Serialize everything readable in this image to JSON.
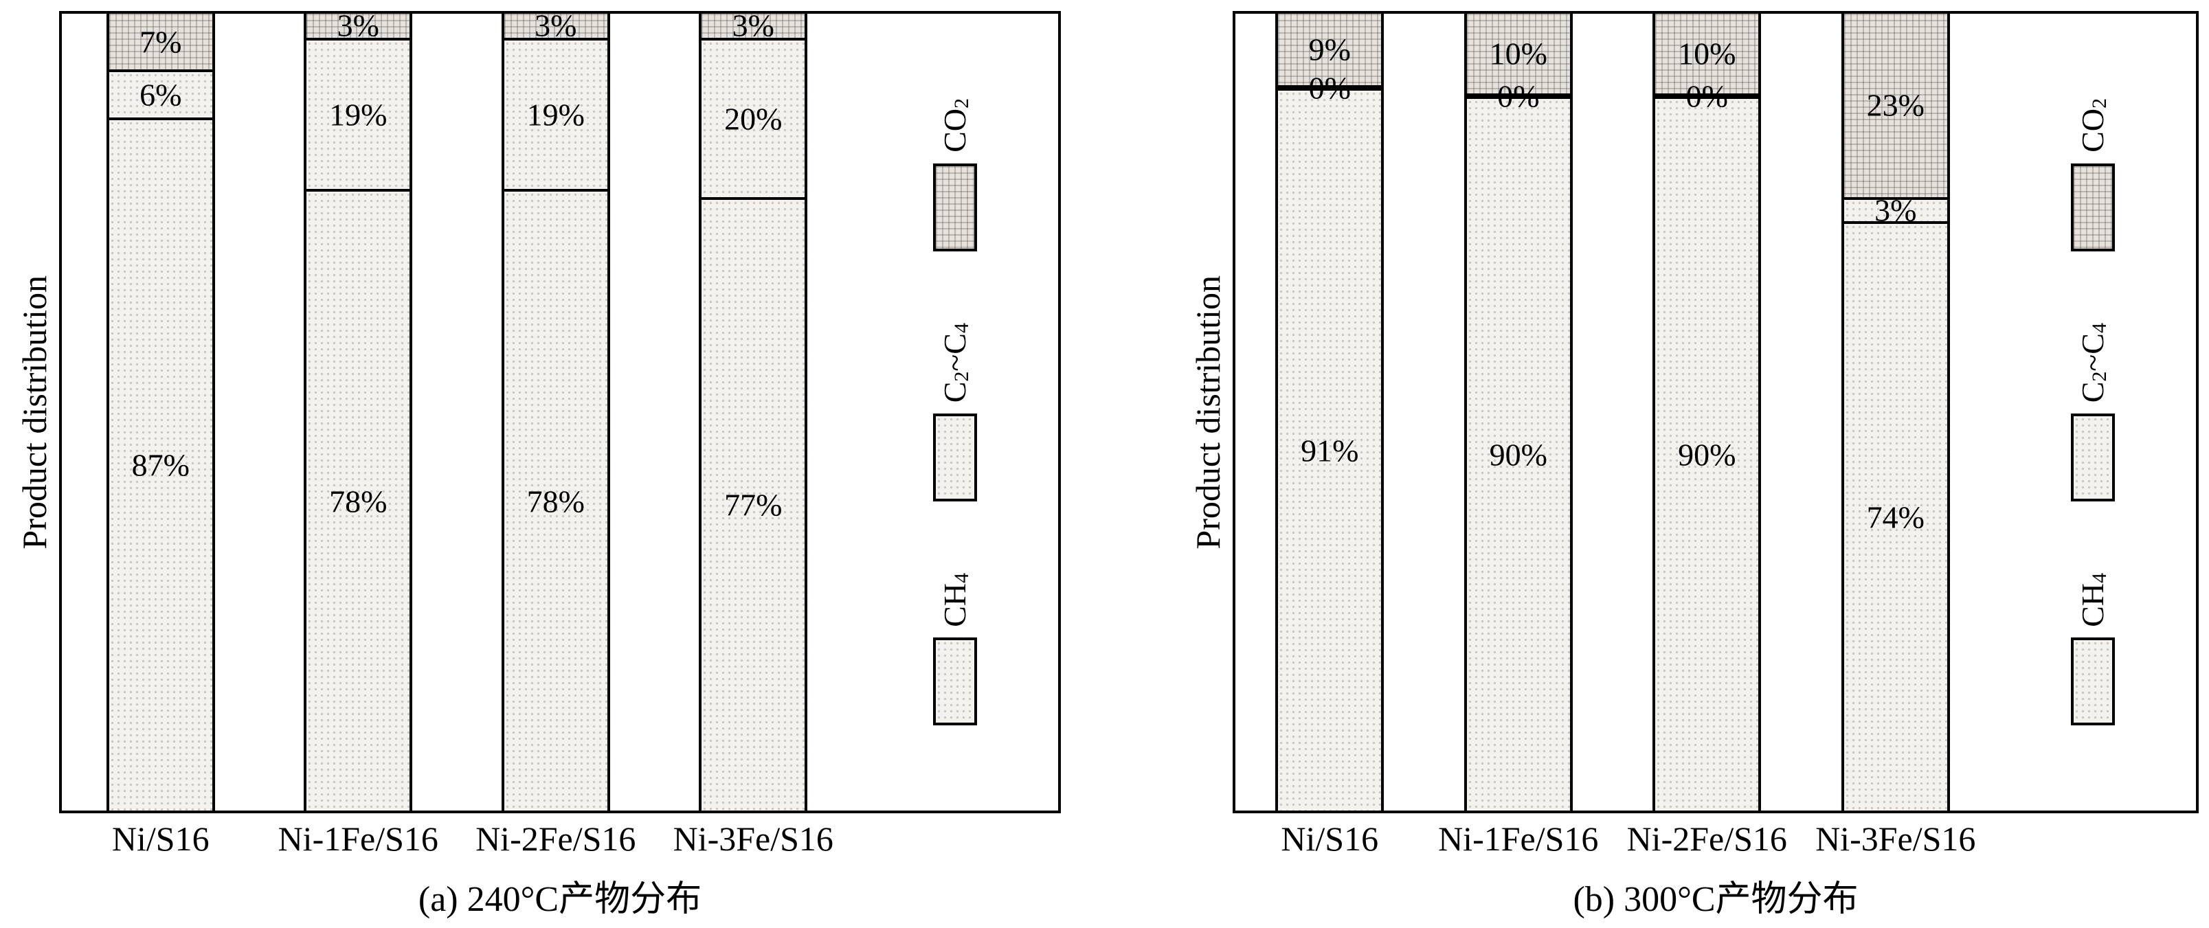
{
  "chart_data": [
    {
      "type": "bar",
      "stacked": true,
      "title": "(a) 240°C产物分布",
      "ylabel": "Product distribution",
      "xlabel": "",
      "ylim": [
        0,
        100
      ],
      "grid": false,
      "legend_position": "right-inside",
      "categories": [
        "Ni/S16",
        "Ni-1Fe/S16",
        "Ni-2Fe/S16",
        "Ni-3Fe/S16"
      ],
      "series": [
        {
          "name": "CH_4",
          "pattern": "dots",
          "values": [
            87,
            78,
            78,
            77
          ]
        },
        {
          "name": "C_2~C_4",
          "pattern": "dots",
          "values": [
            6,
            19,
            19,
            20
          ]
        },
        {
          "name": "CO_2",
          "pattern": "grid",
          "values": [
            7,
            3,
            3,
            3
          ]
        }
      ]
    },
    {
      "type": "bar",
      "stacked": true,
      "title": "(b) 300°C产物分布",
      "ylabel": "Product distribution",
      "xlabel": "",
      "ylim": [
        0,
        100
      ],
      "grid": false,
      "legend_position": "right-inside",
      "categories": [
        "Ni/S16",
        "Ni-1Fe/S16",
        "Ni-2Fe/S16",
        "Ni-3Fe/S16"
      ],
      "series": [
        {
          "name": "CH_4",
          "pattern": "dots",
          "values": [
            91,
            90,
            90,
            74
          ]
        },
        {
          "name": "C_2~C_4",
          "pattern": "dots",
          "values": [
            0,
            0,
            0,
            3
          ]
        },
        {
          "name": "CO_2",
          "pattern": "grid",
          "values": [
            9,
            10,
            10,
            23
          ]
        }
      ]
    }
  ],
  "legend": {
    "items": [
      {
        "label": "CO_2",
        "pattern": "grid"
      },
      {
        "label": "C_2~C_4",
        "pattern": "dots"
      },
      {
        "label": "CH_4",
        "pattern": "dots"
      }
    ]
  },
  "colors": {
    "axis": "#000000",
    "dots_fill": "#f4f2ef",
    "grid_fill": "#e6e2dd",
    "background": "#ffffff"
  }
}
